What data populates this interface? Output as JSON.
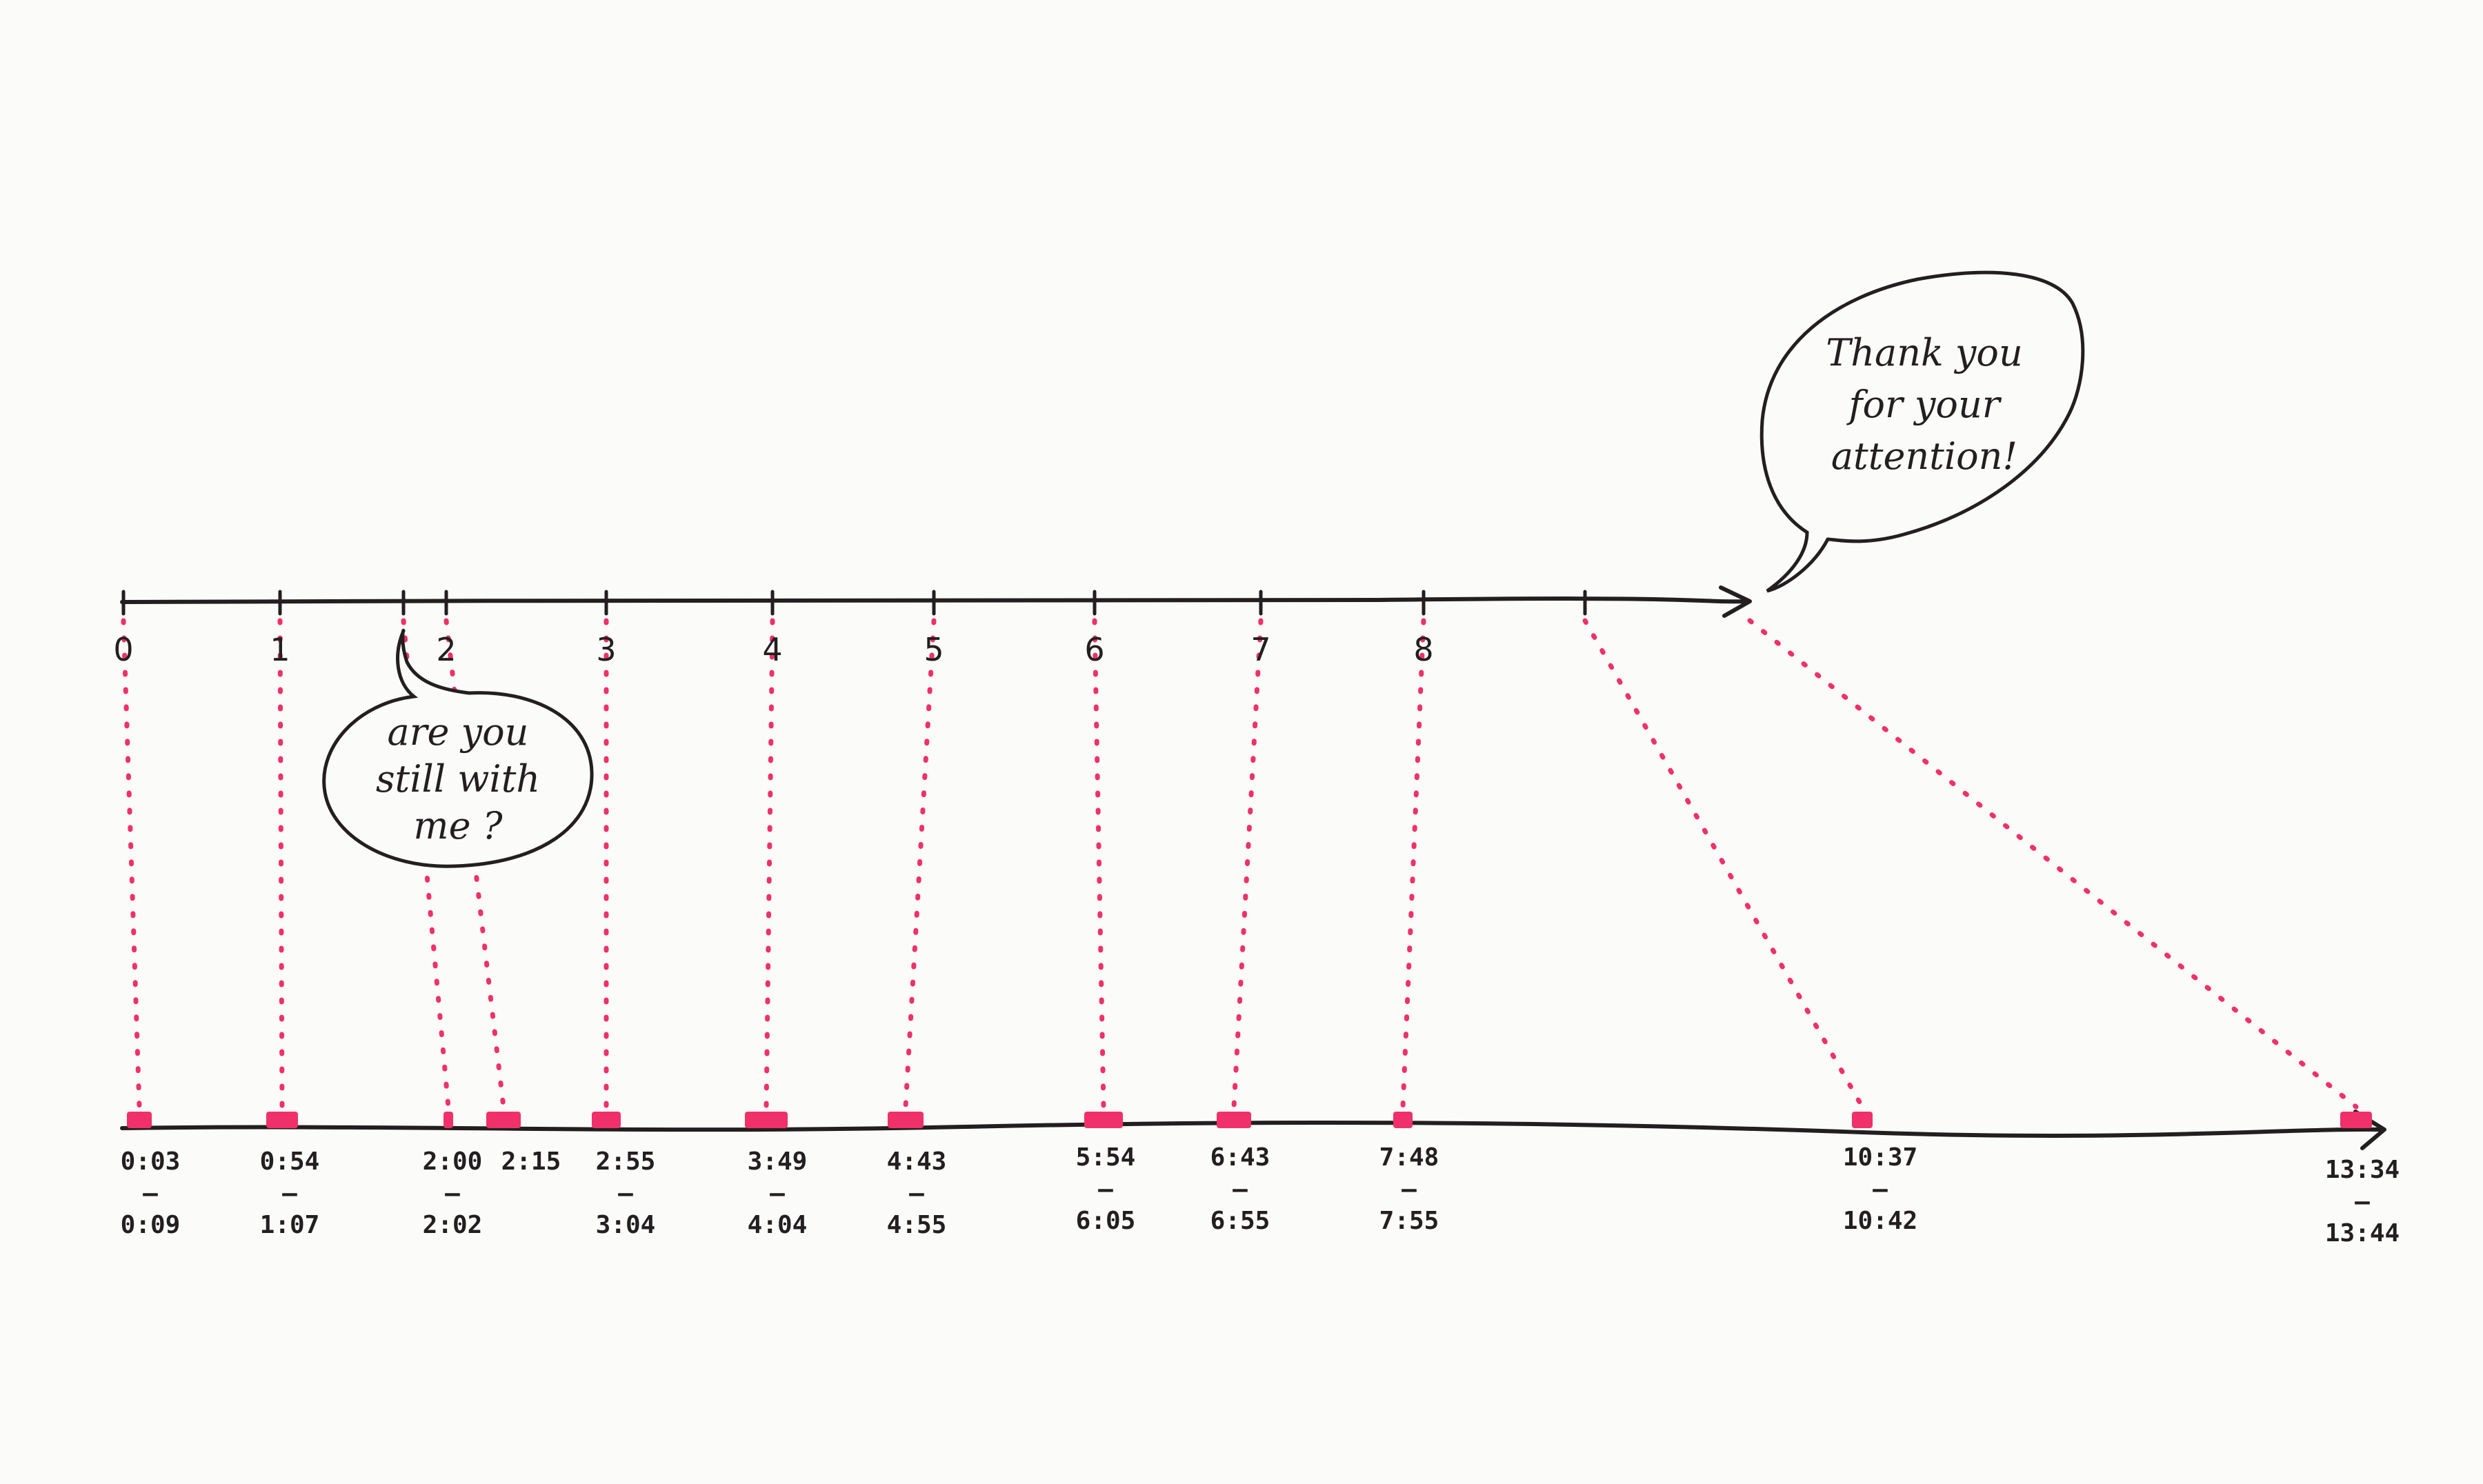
{
  "colors": {
    "ink": "#231f20",
    "highlight": "#f0306a",
    "paper": "#fbfbfa"
  },
  "top_axis": {
    "labels": [
      "0",
      "1",
      "2",
      "3",
      "4",
      "5",
      "6",
      "7",
      "8"
    ]
  },
  "bottom_axis": {
    "segments": [
      {
        "start": "0:03",
        "end": "0:09"
      },
      {
        "start": "0:54",
        "end": "1:07"
      },
      {
        "start": "2:00",
        "end": "2:02"
      },
      {
        "start": "2:15",
        "end": ""
      },
      {
        "start": "2:55",
        "end": "3:04"
      },
      {
        "start": "3:49",
        "end": "4:04"
      },
      {
        "start": "4:43",
        "end": "4:55"
      },
      {
        "start": "5:54",
        "end": "6:05"
      },
      {
        "start": "6:43",
        "end": "6:55"
      },
      {
        "start": "7:48",
        "end": "7:55"
      },
      {
        "start": "10:37",
        "end": "10:42"
      },
      {
        "start": "13:34",
        "end": "13:44"
      }
    ],
    "separator": "–"
  },
  "bubbles": {
    "still_with_me": [
      "are you",
      "still with",
      "me ?"
    ],
    "thank_you": [
      "Thank you",
      "for your",
      "attention!"
    ]
  }
}
